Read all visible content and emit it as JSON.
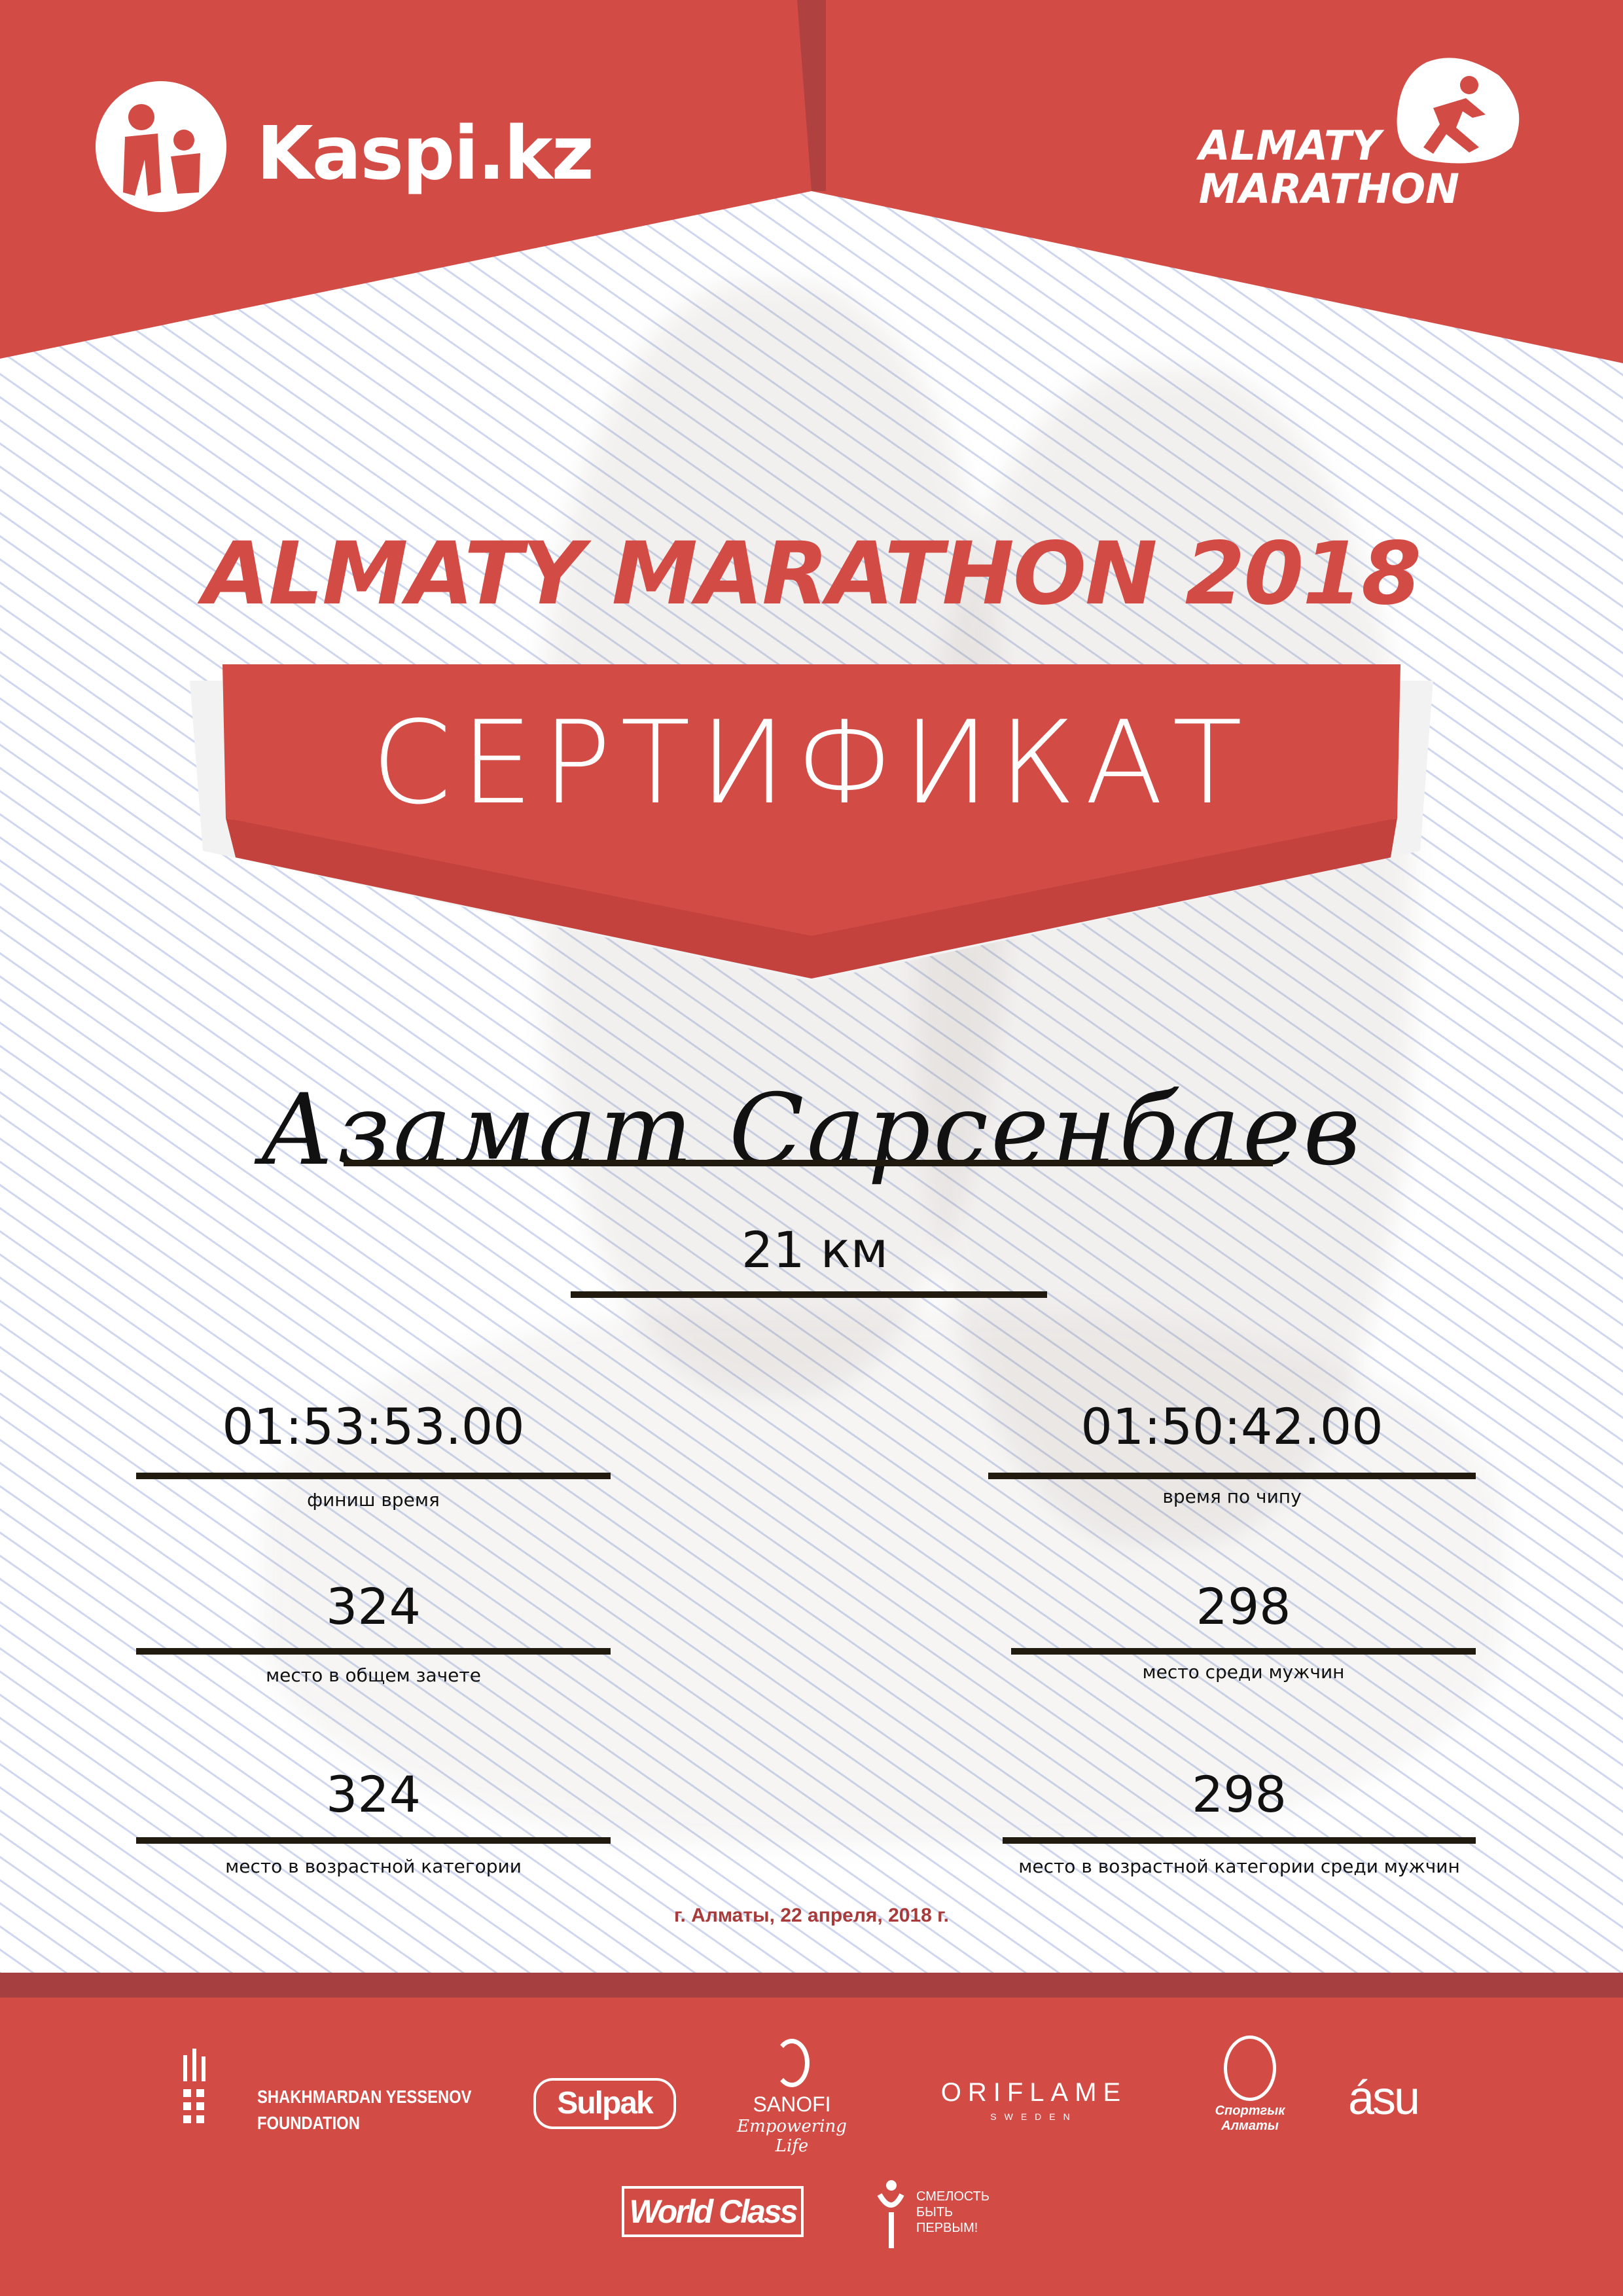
{
  "colors": {
    "brand_red": "#d34b45",
    "dark_red": "#a64040",
    "rule": "#201a0f",
    "date_red": "#a83a3a"
  },
  "header": {
    "sponsor_logo": "Kaspi.kz",
    "event_logo_line1": "ALMATY",
    "event_logo_line2": "MARATHON"
  },
  "title": "ALMATY MARATHON 2018",
  "certificate_label": "СЕРТИФИКАТ",
  "participant": {
    "name": "Азамат Сарсенбаев",
    "distance": "21 км"
  },
  "results": [
    {
      "value": "01:53:53.00",
      "label": "финиш время"
    },
    {
      "value": "01:50:42.00",
      "label": "время по чипу"
    },
    {
      "value": "324",
      "label": "место в общем зачете"
    },
    {
      "value": "298",
      "label": "место среди мужчин"
    },
    {
      "value": "324",
      "label": "место в возрастной категории"
    },
    {
      "value": "298",
      "label": "место в возрастной категории среди мужчин"
    }
  ],
  "date": "г. Алматы, 22 апреля, 2018 г.",
  "partners": {
    "yessenov_line1": "SHAKHMARDAN YESSENOV",
    "yessenov_line2": "FOUNDATION",
    "sulpak": "Sulpak",
    "sanofi": "SANOFI",
    "sanofi_tagline": "Empowering Life",
    "oriflame": "ORIFLAME",
    "oriflame_sub": "SWEDEN",
    "sport_almaty": "Спортгык Алматы",
    "asu": "ásu",
    "worldclass": "World Class",
    "fund_line1": "СМЕЛОСТЬ",
    "fund_line2": "БЫТЬ",
    "fund_line3": "ПЕРВЫМ!"
  }
}
